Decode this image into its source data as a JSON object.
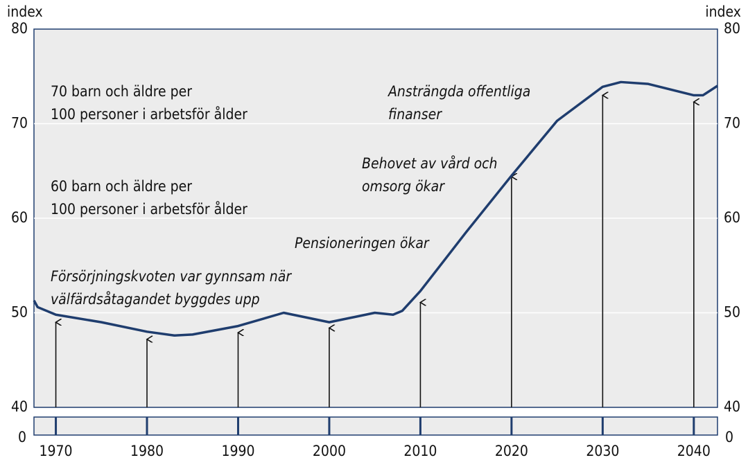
{
  "chart_data": {
    "type": "line",
    "y_axis_label": "index",
    "y2_axis_label": "index",
    "x": [
      1967.6,
      1968,
      1970,
      1975,
      1980,
      1983,
      1985,
      1990,
      1995,
      2000,
      2005,
      2007,
      2008,
      2010,
      2015,
      2020,
      2025,
      2030,
      2032,
      2035,
      2040,
      2041,
      2042.6
    ],
    "series": [
      {
        "color": "#1f3d6e",
        "values": [
          51.3,
          50.6,
          49.8,
          49.0,
          48.0,
          47.6,
          47.7,
          48.6,
          50.0,
          49.0,
          50.0,
          49.8,
          50.2,
          52.3,
          58.5,
          64.5,
          70.3,
          73.9,
          74.4,
          74.2,
          73.0,
          73.0,
          74.0
        ]
      }
    ],
    "arrows": {
      "x": [
        1970,
        1980,
        1990,
        2000,
        2010,
        2020,
        2030,
        2040
      ],
      "values": [
        49.0,
        47.2,
        47.9,
        48.4,
        51.1,
        64.4,
        73.0,
        72.3
      ]
    },
    "xlim": [
      1967.6,
      2042.6
    ],
    "xticks": [
      1970,
      1980,
      1990,
      2000,
      2010,
      2020,
      2030,
      2040
    ],
    "ylim": [
      40,
      80
    ],
    "yticks": [
      40,
      50,
      60,
      70,
      80
    ],
    "y_break_tick": 0,
    "grid": true,
    "annotations": [
      {
        "lines": [
          "70 barn och äldre per",
          "100 personer i arbetsför ålder"
        ]
      },
      {
        "lines": [
          "60 barn och äldre per",
          "100 personer i arbetsför ålder"
        ]
      },
      {
        "lines": [
          "Försörjningskvoten var gynnsam när",
          "välfärdsåtagandet byggdes upp"
        ]
      },
      {
        "lines": [
          "Pensioneringen ökar"
        ]
      },
      {
        "lines": [
          "Behovet av vård och",
          "omsorg ökar"
        ]
      },
      {
        "lines": [
          "Ansträngda offentliga",
          "finanser"
        ]
      }
    ]
  }
}
